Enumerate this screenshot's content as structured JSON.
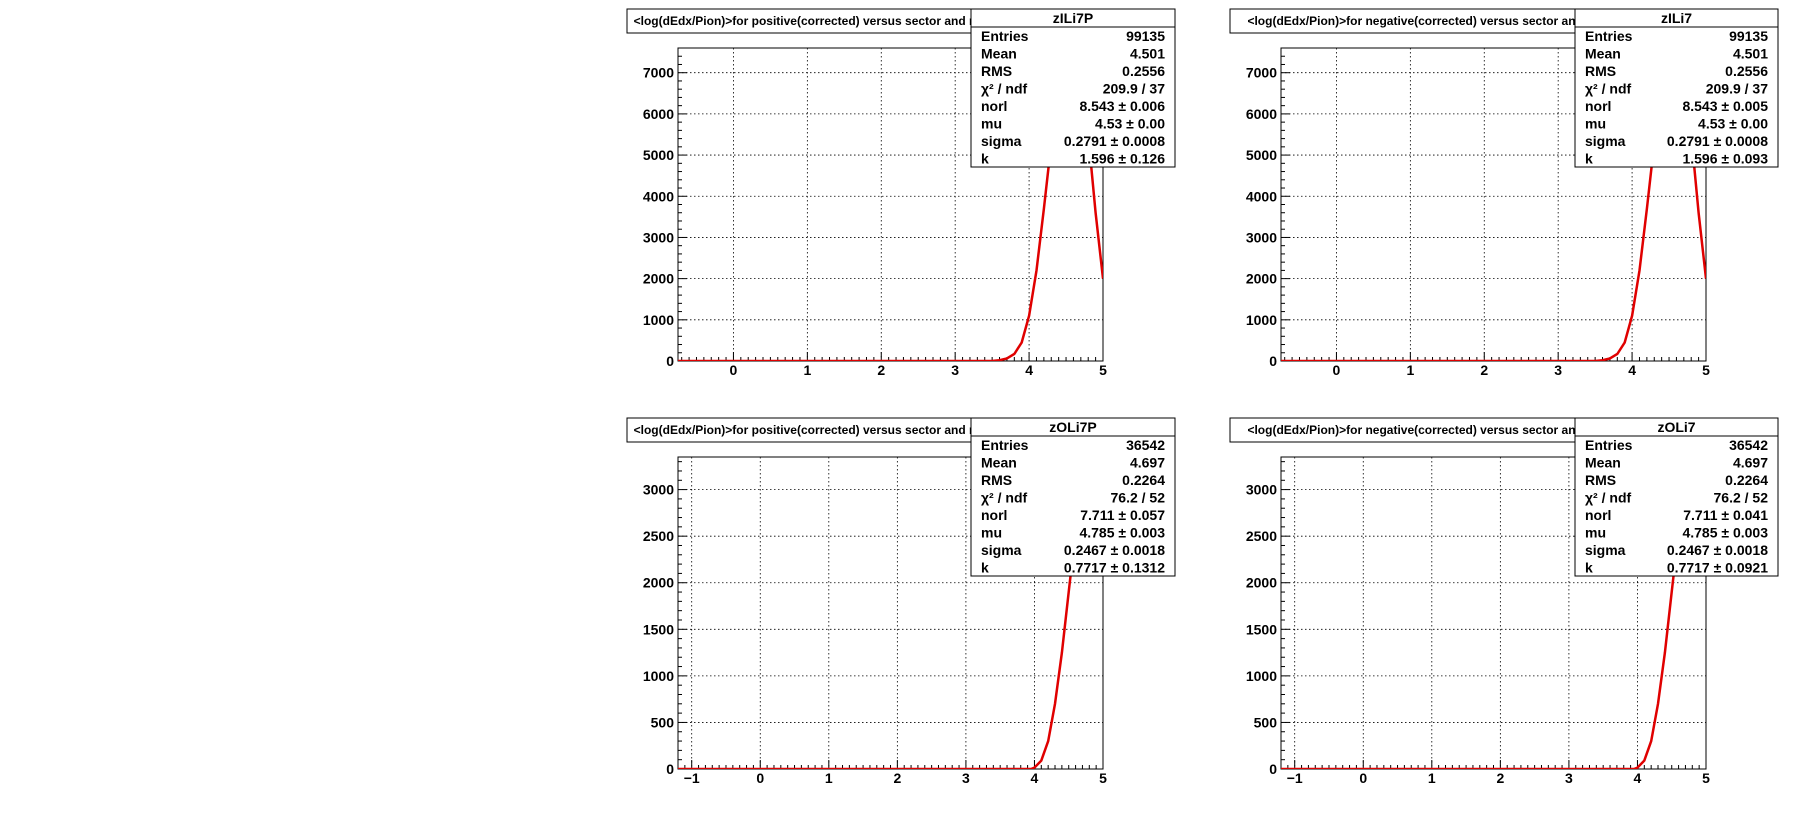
{
  "chart_data": [
    {
      "type": "line",
      "title": "<log(dEdx/Pion)>for positive(corrected) versus sector and row",
      "hist_name": "zILi7P",
      "stats": [
        {
          "name": "Entries",
          "value": "99135"
        },
        {
          "name": "Mean",
          "value": "4.501"
        },
        {
          "name": "RMS",
          "value": "0.2556"
        },
        {
          "name": "χ² / ndf",
          "value": "209.9 / 37"
        },
        {
          "name": "norl",
          "value": "8.543 ± 0.006"
        },
        {
          "name": "mu",
          "value": "4.53 ± 0.00"
        },
        {
          "name": "sigma",
          "value": "0.2791 ± 0.0008"
        },
        {
          "name": "k",
          "value": "1.596 ± 0.126"
        }
      ],
      "xlim": [
        -0.75,
        5.0
      ],
      "ylim": [
        0,
        7600
      ],
      "xticks": [
        0,
        1,
        2,
        3,
        4,
        5
      ],
      "yticks": [
        0,
        1000,
        2000,
        3000,
        4000,
        5000,
        6000,
        7000
      ],
      "fit_curve": {
        "x": [
          -0.75,
          3.5,
          3.6,
          3.7,
          3.8,
          3.9,
          4.0,
          4.1,
          4.2,
          4.3,
          4.4,
          4.5,
          4.6,
          4.7,
          4.8,
          4.9,
          5.0
        ],
        "y": [
          0,
          0,
          20,
          60,
          170,
          450,
          1100,
          2200,
          3700,
          5300,
          6600,
          7400,
          7600,
          6800,
          5500,
          3600,
          2000
        ]
      },
      "series": [
        {
          "name": "zILi7P",
          "color": "#e00000"
        }
      ]
    },
    {
      "type": "line",
      "title": "<log(dEdx/Pion)>for negative(corrected) versus sector and row",
      "hist_name": "zILi7",
      "stats": [
        {
          "name": "Entries",
          "value": "99135"
        },
        {
          "name": "Mean",
          "value": "4.501"
        },
        {
          "name": "RMS",
          "value": "0.2556"
        },
        {
          "name": "χ² / ndf",
          "value": "209.9 / 37"
        },
        {
          "name": "norl",
          "value": "8.543 ± 0.005"
        },
        {
          "name": "mu",
          "value": "4.53 ± 0.00"
        },
        {
          "name": "sigma",
          "value": "0.2791 ± 0.0008"
        },
        {
          "name": "k",
          "value": "1.596 ± 0.093"
        }
      ],
      "xlim": [
        -0.75,
        5.0
      ],
      "ylim": [
        0,
        7600
      ],
      "xticks": [
        0,
        1,
        2,
        3,
        4,
        5
      ],
      "yticks": [
        0,
        1000,
        2000,
        3000,
        4000,
        5000,
        6000,
        7000
      ],
      "fit_curve": {
        "x": [
          -0.75,
          3.5,
          3.6,
          3.7,
          3.8,
          3.9,
          4.0,
          4.1,
          4.2,
          4.3,
          4.4,
          4.5,
          4.6,
          4.7,
          4.8,
          4.9,
          5.0
        ],
        "y": [
          0,
          0,
          20,
          60,
          170,
          450,
          1100,
          2200,
          3700,
          5300,
          6600,
          7400,
          7600,
          6800,
          5500,
          3600,
          2000
        ]
      },
      "series": [
        {
          "name": "zILi7",
          "color": "#e00000"
        }
      ]
    },
    {
      "type": "line",
      "title": "<log(dEdx/Pion)>for positive(corrected) versus sector and row",
      "hist_name": "zOLi7P",
      "stats": [
        {
          "name": "Entries",
          "value": "36542"
        },
        {
          "name": "Mean",
          "value": "4.697"
        },
        {
          "name": "RMS",
          "value": "0.2264"
        },
        {
          "name": "χ² / ndf",
          "value": "76.2 / 52"
        },
        {
          "name": "norl",
          "value": "7.711 ± 0.057"
        },
        {
          "name": "mu",
          "value": "4.785 ± 0.003"
        },
        {
          "name": "sigma",
          "value": "0.2467 ± 0.0018"
        },
        {
          "name": "k",
          "value": "0.7717 ± 0.1312"
        }
      ],
      "xlim": [
        -1.2,
        5.0
      ],
      "ylim": [
        0,
        3350
      ],
      "xticks": [
        -1,
        0,
        1,
        2,
        3,
        4,
        5
      ],
      "yticks": [
        0,
        500,
        1000,
        1500,
        2000,
        2500,
        3000
      ],
      "fit_curve": {
        "x": [
          -1.2,
          3.95,
          4.0,
          4.1,
          4.2,
          4.3,
          4.4,
          4.5,
          4.6,
          4.7
        ],
        "y": [
          0,
          0,
          15,
          90,
          300,
          700,
          1250,
          1900,
          2550,
          3350
        ]
      },
      "series": [
        {
          "name": "zOLi7P",
          "color": "#e00000"
        }
      ]
    },
    {
      "type": "line",
      "title": "<log(dEdx/Pion)>for negative(corrected) versus sector and row",
      "hist_name": "zOLi7",
      "stats": [
        {
          "name": "Entries",
          "value": "36542"
        },
        {
          "name": "Mean",
          "value": "4.697"
        },
        {
          "name": "RMS",
          "value": "0.2264"
        },
        {
          "name": "χ² / ndf",
          "value": "76.2 / 52"
        },
        {
          "name": "norl",
          "value": "7.711 ± 0.041"
        },
        {
          "name": "mu",
          "value": "4.785 ± 0.003"
        },
        {
          "name": "sigma",
          "value": "0.2467 ± 0.0018"
        },
        {
          "name": "k",
          "value": "0.7717 ± 0.0921"
        }
      ],
      "xlim": [
        -1.2,
        5.0
      ],
      "ylim": [
        0,
        3350
      ],
      "xticks": [
        -1,
        0,
        1,
        2,
        3,
        4,
        5
      ],
      "yticks": [
        0,
        500,
        1000,
        1500,
        2000,
        2500,
        3000
      ],
      "fit_curve": {
        "x": [
          -1.2,
          3.95,
          4.0,
          4.1,
          4.2,
          4.3,
          4.4,
          4.5,
          4.6,
          4.7
        ],
        "y": [
          0,
          0,
          15,
          90,
          300,
          700,
          1250,
          1900,
          2550,
          3350
        ]
      },
      "series": [
        {
          "name": "zOLi7",
          "color": "#e00000"
        }
      ]
    }
  ]
}
